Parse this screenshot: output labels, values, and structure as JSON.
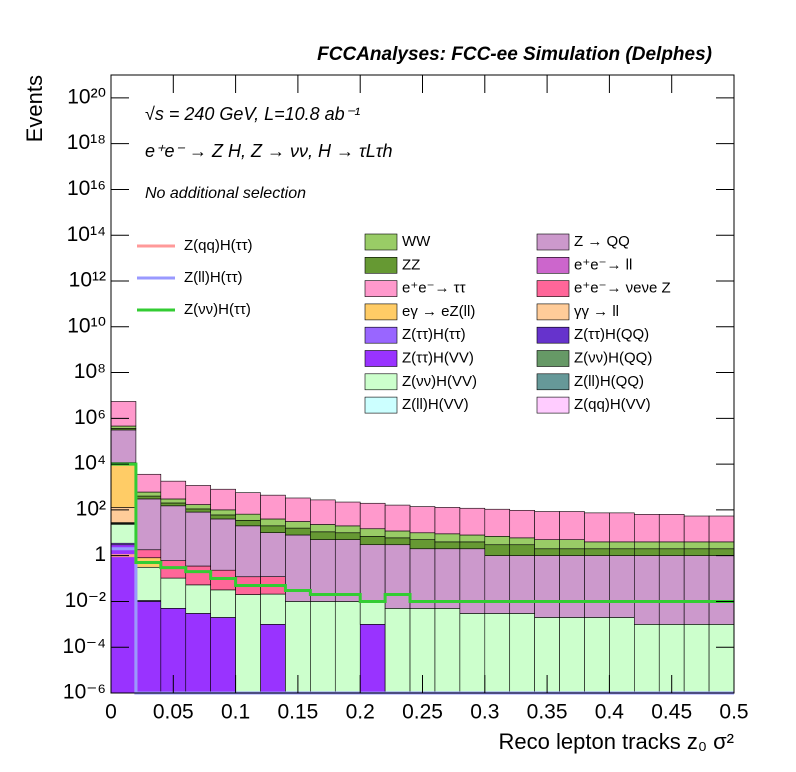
{
  "chart_data": {
    "type": "stacked_histogram",
    "title": "FCCAnalyses: FCC-ee Simulation (Delphes)",
    "annotations": [
      "√s = 240 GeV, L=10.8 ab⁻¹",
      "e⁺e⁻ → Z H, Z → νν, H → τLτh",
      "No additional selection"
    ],
    "x_label": "Reco lepton tracks z₀ σ²",
    "y_label": "Events",
    "bins": [
      0,
      0.02,
      0.04,
      0.06,
      0.08,
      0.1,
      0.12,
      0.14,
      0.16,
      0.18,
      0.2,
      0.22,
      0.24,
      0.26,
      0.28,
      0.3,
      0.32,
      0.34,
      0.36,
      0.38,
      0.4,
      0.42,
      0.44,
      0.46,
      0.48,
      0.5
    ],
    "xlim": [
      0,
      0.5
    ],
    "xticks": [
      0,
      0.05,
      0.1,
      0.15,
      0.2,
      0.25,
      0.3,
      0.35,
      0.4,
      0.45,
      0.5
    ],
    "ylim": [
      1e-06,
      1e+21
    ],
    "log_y": true,
    "yticks": [
      {
        "value": 1e-06,
        "label": "10⁻⁶"
      },
      {
        "value": 0.0001,
        "label": "10⁻⁴"
      },
      {
        "value": 0.01,
        "label": "10⁻²"
      },
      1,
      {
        "value": 100,
        "label": "10²"
      },
      {
        "value": 10000,
        "label": "10⁴"
      },
      {
        "value": 1000000.0,
        "label": "10⁶"
      },
      {
        "value": 100000000.0,
        "label": "10⁸"
      },
      {
        "value": 10000000000.0,
        "label": "10¹⁰"
      },
      {
        "value": 1000000000000.0,
        "label": "10¹²"
      },
      {
        "value": 100000000000000.0,
        "label": "10¹⁴"
      },
      {
        "value": 1e+16,
        "label": "10¹⁶"
      },
      {
        "value": 1e+18,
        "label": "10¹⁸"
      },
      {
        "value": 1e+20,
        "label": "10²⁰"
      }
    ],
    "series": [
      {
        "name": "Z(ττ)H(VV)",
        "color": "#9933ff",
        "values": [
          3,
          0.01,
          0.005,
          0.003,
          0.002,
          0,
          0.001,
          0,
          0,
          0,
          0.001,
          0,
          0,
          0,
          0,
          0,
          0,
          0,
          0,
          0,
          0,
          0,
          0,
          0,
          0
        ]
      },
      {
        "name": "Z(ττ)H(ττ)",
        "color": "#9966ff",
        "values": [
          0.5,
          0.001,
          0,
          0,
          0,
          0,
          0,
          0,
          0,
          0,
          0,
          0,
          0,
          0,
          0,
          0,
          0,
          0,
          0,
          0,
          0,
          0,
          0,
          0,
          0
        ]
      },
      {
        "name": "Z(νν)H(VV)",
        "color": "#ccffcc",
        "values": [
          20,
          0.3,
          0.1,
          0.05,
          0.03,
          0.02,
          0.02,
          0.01,
          0.01,
          0.01,
          0.01,
          0.005,
          0.005,
          0.005,
          0.003,
          0.003,
          0.003,
          0.002,
          0.002,
          0.002,
          0.002,
          0.001,
          0.001,
          0.001,
          0.001
        ]
      },
      {
        "name": "Z(ll)H(VV)",
        "color": "#ccffff",
        "values": [
          0.5,
          0,
          0,
          0,
          0,
          0,
          0,
          0,
          0,
          0,
          0,
          0,
          0,
          0,
          0,
          0,
          0,
          0,
          0,
          0,
          0,
          0,
          0,
          0,
          0
        ]
      },
      {
        "name": "Z(qq)H(VV)",
        "color": "#ffccff",
        "values": [
          1,
          0,
          0,
          0,
          0,
          0,
          0,
          0,
          0,
          0,
          0,
          0,
          0,
          0,
          0,
          0,
          0,
          0,
          0,
          0,
          0,
          0,
          0,
          0,
          0
        ]
      },
      {
        "name": "Z(ττ)H(QQ)",
        "color": "#6633cc",
        "values": [
          0.3,
          0,
          0,
          0,
          0,
          0,
          0,
          0,
          0,
          0,
          0,
          0,
          0,
          0,
          0,
          0,
          0,
          0,
          0,
          0,
          0,
          0,
          0,
          0,
          0
        ]
      },
      {
        "name": "Z(νν)H(QQ)",
        "color": "#669966",
        "values": [
          2,
          0,
          0,
          0,
          0,
          0,
          0,
          0,
          0,
          0,
          0,
          0,
          0,
          0,
          0,
          0,
          0,
          0,
          0,
          0,
          0,
          0,
          0,
          0,
          0
        ]
      },
      {
        "name": "Z(ll)H(QQ)",
        "color": "#669999",
        "values": [
          0.5,
          0,
          0,
          0,
          0,
          0,
          0,
          0,
          0,
          0,
          0,
          0,
          0,
          0,
          0,
          0,
          0,
          0,
          0,
          0,
          0,
          0,
          0,
          0,
          0
        ]
      },
      {
        "name": "γγ → ll",
        "color": "#ffcc99",
        "values": [
          100,
          0,
          0,
          0,
          0,
          0,
          0,
          0,
          0,
          0,
          0,
          0,
          0,
          0,
          0,
          0,
          0,
          0,
          0,
          0,
          0,
          0,
          0,
          0,
          0
        ]
      },
      {
        "name": "eγ → eZ(ll)",
        "color": "#ffcc66",
        "values": [
          10000,
          0.5,
          0,
          0,
          0,
          0,
          0,
          0,
          0,
          0,
          0,
          0,
          0,
          0,
          0,
          0,
          0,
          0,
          0,
          0,
          0,
          0,
          0,
          0,
          0
        ]
      },
      {
        "name": "e⁺e⁻→ νeνe Z",
        "color": "#ff6699",
        "values": [
          500,
          1,
          0.5,
          0.3,
          0.2,
          0.1,
          0.1,
          0,
          0,
          0,
          0,
          0,
          0,
          0,
          0,
          0,
          0,
          0,
          0,
          0,
          0,
          0,
          0,
          0,
          0
        ]
      },
      {
        "name": "e⁺e⁻→ ll",
        "color": "#cc66cc",
        "values": [
          1000,
          0,
          0,
          0,
          0,
          0,
          0,
          0,
          0,
          0,
          0,
          0,
          0,
          0,
          0,
          0,
          0,
          0,
          0,
          0,
          0,
          0,
          0,
          0,
          0
        ]
      },
      {
        "name": "Z → QQ",
        "color": "#cc99cc",
        "values": [
          300000,
          300,
          150,
          80,
          40,
          20,
          10,
          8,
          5,
          5,
          3,
          3,
          2,
          2,
          2,
          1,
          1,
          1,
          1,
          1,
          1,
          1,
          1,
          1,
          1
        ]
      },
      {
        "name": "ZZ",
        "color": "#669933",
        "values": [
          50000,
          100,
          50,
          30,
          20,
          15,
          10,
          8,
          6,
          5,
          4,
          3,
          3,
          2,
          2,
          2,
          2,
          1,
          1,
          1,
          1,
          1,
          1,
          1,
          1
        ]
      },
      {
        "name": "WW",
        "color": "#99cc66",
        "values": [
          100000,
          200,
          100,
          60,
          40,
          30,
          20,
          15,
          12,
          10,
          8,
          6,
          5,
          5,
          4,
          4,
          3,
          3,
          3,
          2,
          2,
          2,
          2,
          2,
          2
        ]
      },
      {
        "name": "e⁺e⁻→ ττ",
        "color": "#ff99cc",
        "values": [
          5000000,
          3000,
          1500,
          1000,
          700,
          500,
          400,
          300,
          250,
          200,
          180,
          150,
          130,
          120,
          110,
          100,
          90,
          80,
          80,
          70,
          70,
          60,
          60,
          50,
          50
        ]
      }
    ],
    "lines": [
      {
        "name": "Z(qq)H(ττ)",
        "color": "#ff9999",
        "values": [
          1,
          0,
          0,
          0,
          0,
          0,
          0,
          0,
          0,
          0,
          0,
          0,
          0,
          0,
          0,
          0,
          0,
          0,
          0,
          0,
          0,
          0,
          0,
          0,
          0
        ]
      },
      {
        "name": "Z(ll)H(ττ)",
        "color": "#9999ff",
        "values": [
          2,
          0,
          0,
          0,
          0,
          0,
          0,
          0,
          0,
          0,
          0,
          0,
          0,
          0,
          0,
          0,
          0,
          0,
          0,
          0,
          0,
          0,
          0,
          0,
          0
        ]
      },
      {
        "name": "Z(νν)H(ττ)",
        "color": "#33cc33",
        "values": [
          10000,
          0.5,
          0.3,
          0.2,
          0.1,
          0.05,
          0.05,
          0.03,
          0.02,
          0.02,
          0.01,
          0.02,
          0.01,
          0.01,
          0.01,
          0.01,
          0.01,
          0.01,
          0.01,
          0.01,
          0.01,
          0.01,
          0.01,
          0.01,
          0.01
        ]
      }
    ]
  }
}
